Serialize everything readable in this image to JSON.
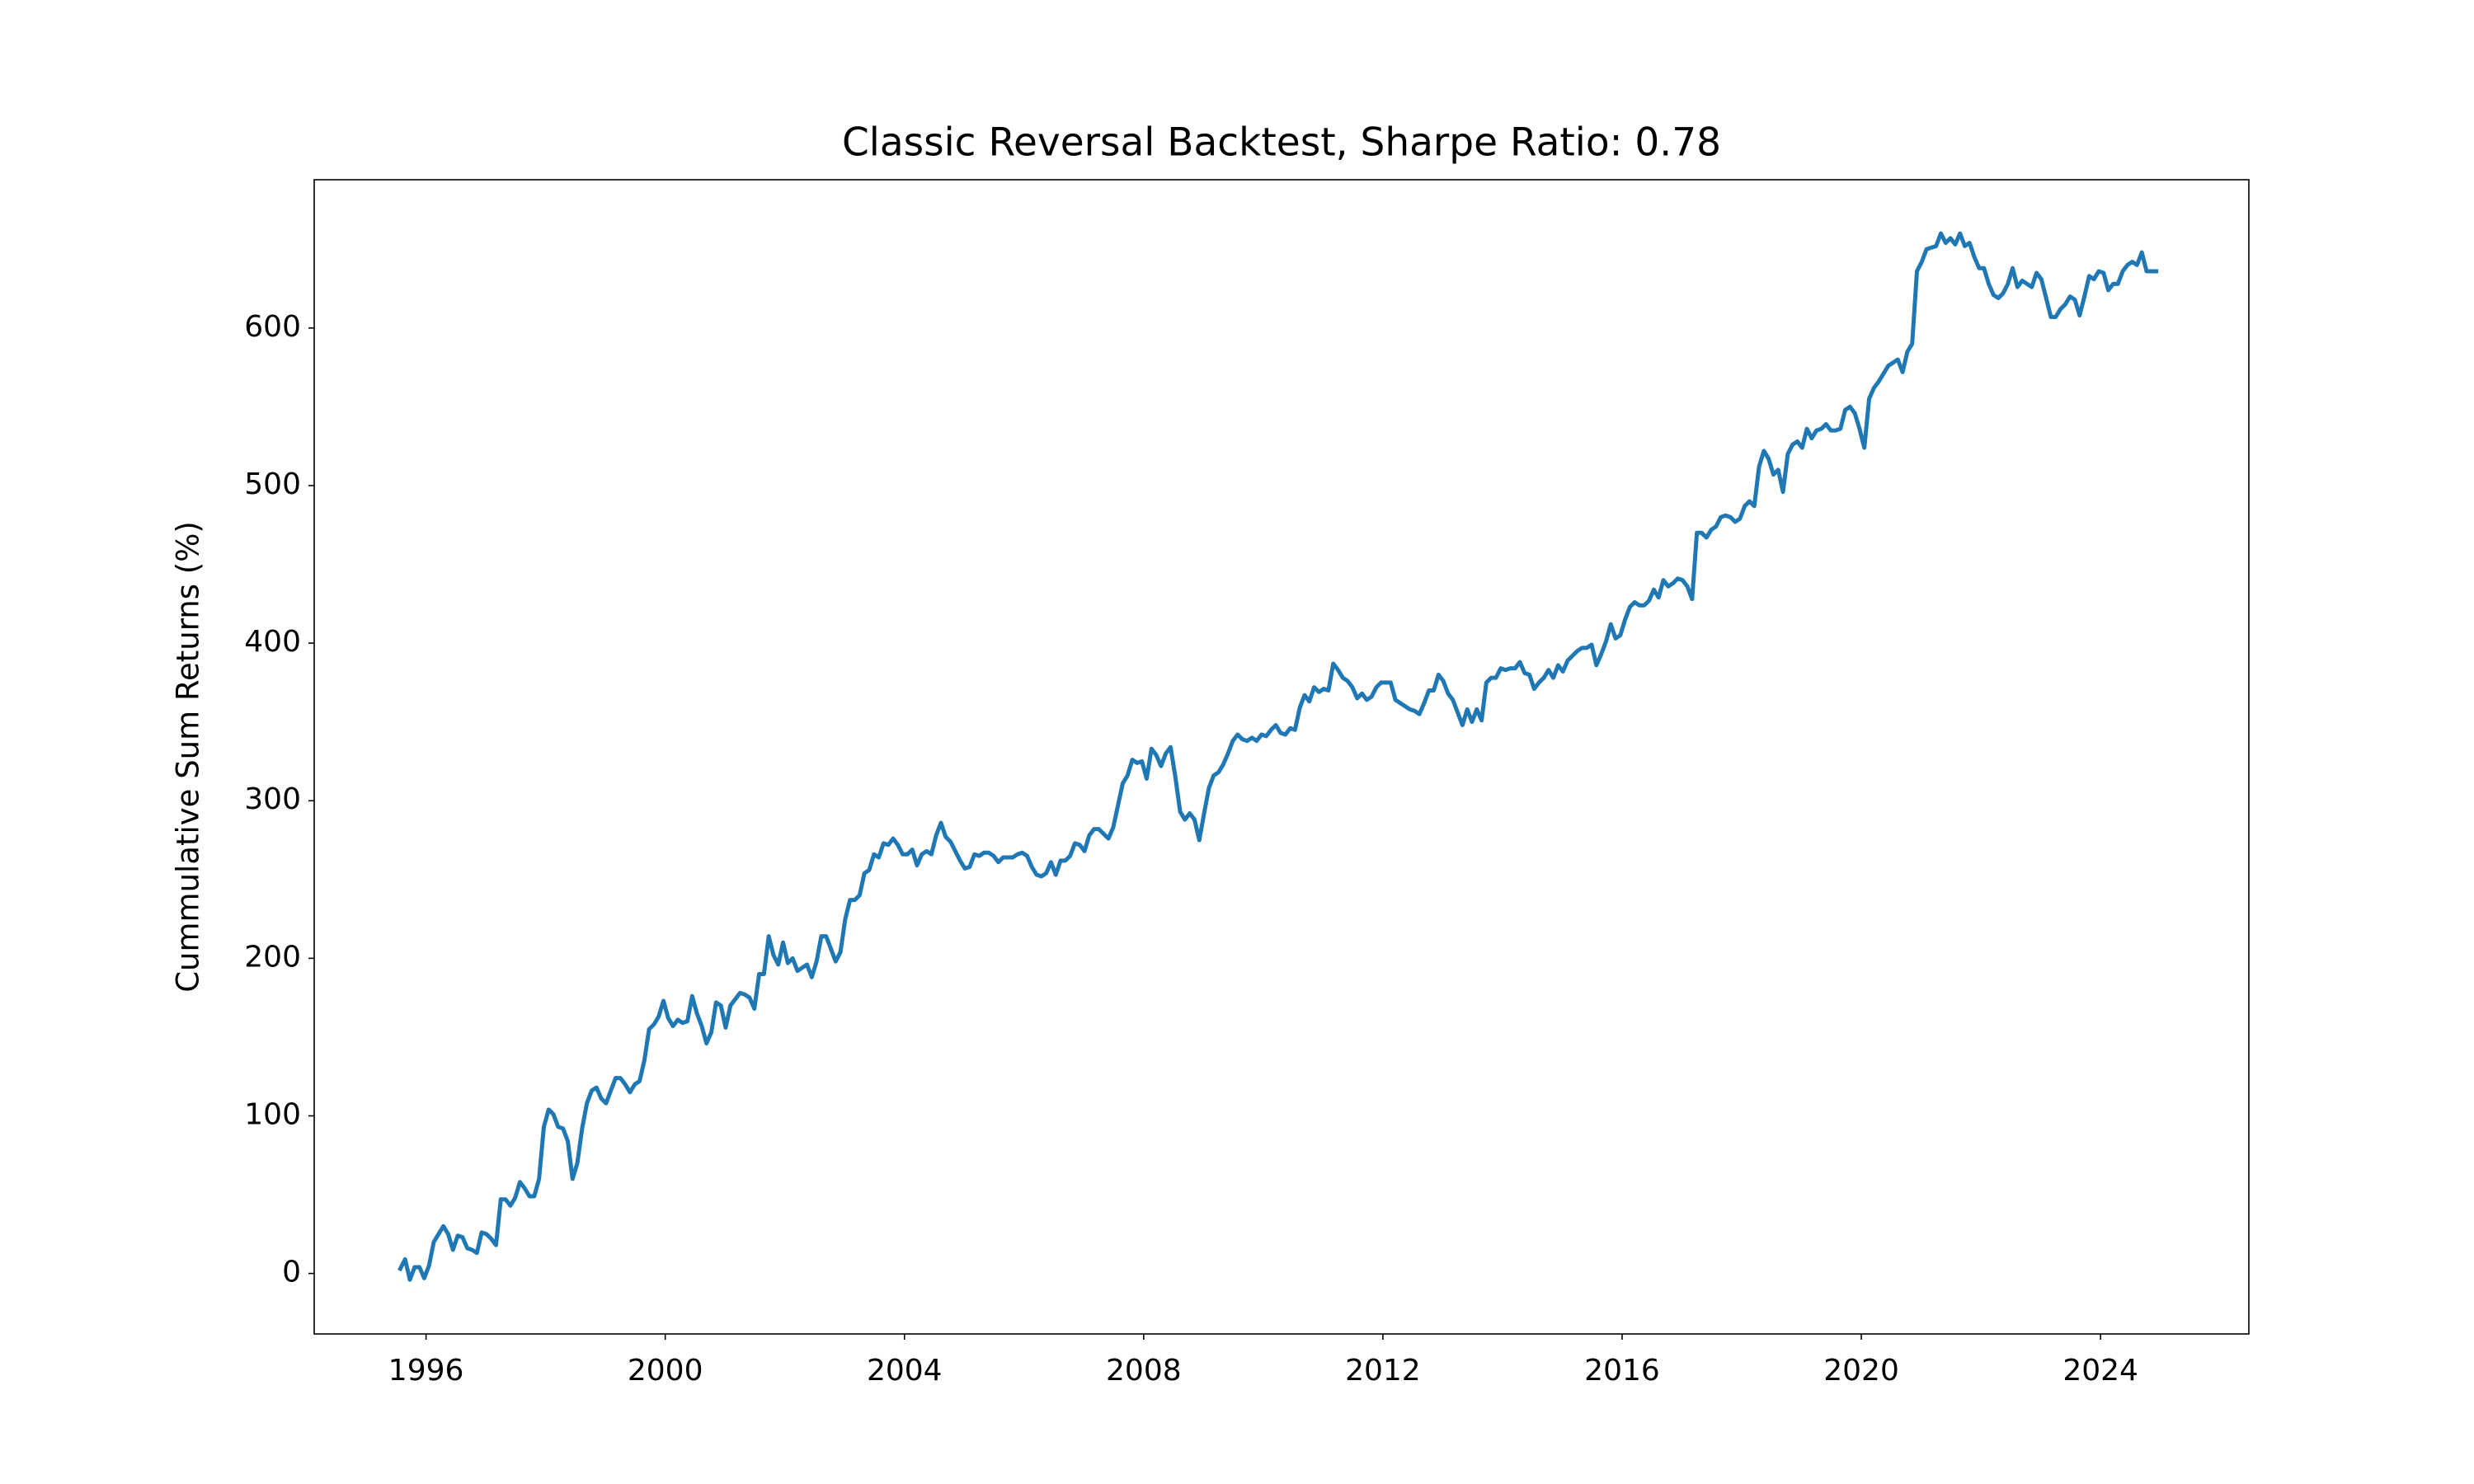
{
  "chart_data": {
    "type": "line",
    "title": "Classic Reversal Backtest, Sharpe Ratio: 0.78",
    "ylabel": "Cummulative Sum Returns (%)",
    "color": "#1f77b4",
    "xlim": [
      1994.13,
      2026.48
    ],
    "ylim": [
      -38.4,
      694.1
    ],
    "xticks": [
      1996,
      2000,
      2004,
      2008,
      2012,
      2016,
      2020,
      2024
    ],
    "yticks": [
      0,
      100,
      200,
      300,
      400,
      500,
      600
    ],
    "x": [
      1995.57,
      1995.65,
      1995.73,
      1995.81,
      1995.89,
      1995.97,
      1996.05,
      1996.13,
      1996.21,
      1996.29,
      1996.37,
      1996.45,
      1996.53,
      1996.61,
      1996.69,
      1996.77,
      1996.85,
      1996.93,
      1997.01,
      1997.09,
      1997.17,
      1997.25,
      1997.33,
      1997.41,
      1997.49,
      1997.57,
      1997.65,
      1997.73,
      1997.81,
      1997.89,
      1997.97,
      1998.05,
      1998.13,
      1998.21,
      1998.29,
      1998.37,
      1998.45,
      1998.53,
      1998.61,
      1998.69,
      1998.77,
      1998.85,
      1998.93,
      1999.01,
      1999.09,
      1999.17,
      1999.25,
      1999.33,
      1999.41,
      1999.49,
      1999.57,
      1999.65,
      1999.73,
      1999.81,
      1999.89,
      1999.97,
      2000.05,
      2000.13,
      2000.21,
      2000.29,
      2000.37,
      2000.45,
      2000.53,
      2000.61,
      2000.69,
      2000.77,
      2000.85,
      2000.93,
      2001.01,
      2001.09,
      2001.17,
      2001.25,
      2001.33,
      2001.41,
      2001.49,
      2001.57,
      2001.65,
      2001.73,
      2001.81,
      2001.89,
      2001.97,
      2002.05,
      2002.13,
      2002.21,
      2002.29,
      2002.37,
      2002.45,
      2002.53,
      2002.61,
      2002.69,
      2002.77,
      2002.85,
      2002.93,
      2003.01,
      2003.09,
      2003.17,
      2003.25,
      2003.33,
      2003.41,
      2003.49,
      2003.57,
      2003.65,
      2003.73,
      2003.81,
      2003.89,
      2003.97,
      2004.05,
      2004.13,
      2004.21,
      2004.29,
      2004.37,
      2004.45,
      2004.53,
      2004.61,
      2004.69,
      2004.77,
      2004.85,
      2004.93,
      2005.01,
      2005.09,
      2005.17,
      2005.25,
      2005.33,
      2005.41,
      2005.49,
      2005.57,
      2005.65,
      2005.73,
      2005.81,
      2005.89,
      2005.97,
      2006.05,
      2006.13,
      2006.21,
      2006.29,
      2006.37,
      2006.45,
      2006.53,
      2006.61,
      2006.69,
      2006.77,
      2006.85,
      2006.93,
      2007.01,
      2007.09,
      2007.17,
      2007.25,
      2007.33,
      2007.41,
      2007.49,
      2007.57,
      2007.65,
      2007.73,
      2007.81,
      2007.89,
      2007.97,
      2008.05,
      2008.13,
      2008.21,
      2008.29,
      2008.37,
      2008.45,
      2008.53,
      2008.61,
      2008.69,
      2008.77,
      2008.85,
      2008.93,
      2009.01,
      2009.09,
      2009.17,
      2009.25,
      2009.33,
      2009.41,
      2009.49,
      2009.57,
      2009.65,
      2009.73,
      2009.81,
      2009.89,
      2009.97,
      2010.05,
      2010.13,
      2010.21,
      2010.29,
      2010.37,
      2010.45,
      2010.53,
      2010.61,
      2010.69,
      2010.77,
      2010.85,
      2010.93,
      2011.01,
      2011.09,
      2011.17,
      2011.25,
      2011.33,
      2011.41,
      2011.49,
      2011.57,
      2011.65,
      2011.73,
      2011.81,
      2011.89,
      2011.97,
      2012.05,
      2012.13,
      2012.21,
      2012.29,
      2012.37,
      2012.45,
      2012.53,
      2012.61,
      2012.69,
      2012.77,
      2012.85,
      2012.93,
      2013.01,
      2013.09,
      2013.17,
      2013.25,
      2013.33,
      2013.41,
      2013.49,
      2013.57,
      2013.65,
      2013.73,
      2013.81,
      2013.89,
      2013.97,
      2014.05,
      2014.13,
      2014.21,
      2014.29,
      2014.37,
      2014.45,
      2014.53,
      2014.61,
      2014.69,
      2014.77,
      2014.85,
      2014.93,
      2015.01,
      2015.09,
      2015.17,
      2015.25,
      2015.33,
      2015.41,
      2015.49,
      2015.57,
      2015.65,
      2015.73,
      2015.81,
      2015.89,
      2015.97,
      2016.05,
      2016.13,
      2016.21,
      2016.29,
      2016.37,
      2016.45,
      2016.53,
      2016.61,
      2016.69,
      2016.77,
      2016.85,
      2016.93,
      2017.01,
      2017.09,
      2017.17,
      2017.25,
      2017.33,
      2017.41,
      2017.49,
      2017.57,
      2017.65,
      2017.73,
      2017.81,
      2017.89,
      2017.97,
      2018.05,
      2018.13,
      2018.21,
      2018.29,
      2018.37,
      2018.45,
      2018.53,
      2018.61,
      2018.69,
      2018.77,
      2018.85,
      2018.93,
      2019.01,
      2019.09,
      2019.17,
      2019.25,
      2019.33,
      2019.41,
      2019.49,
      2019.57,
      2019.65,
      2019.73,
      2019.81,
      2019.89,
      2019.97,
      2020.05,
      2020.13,
      2020.21,
      2020.29,
      2020.37,
      2020.45,
      2020.53,
      2020.61,
      2020.69,
      2020.77,
      2020.85,
      2020.93,
      2021.01,
      2021.09,
      2021.17,
      2021.25,
      2021.33,
      2021.41,
      2021.49,
      2021.57,
      2021.65,
      2021.73,
      2021.81,
      2021.89,
      2021.97,
      2022.05,
      2022.13,
      2022.21,
      2022.29,
      2022.37,
      2022.45,
      2022.53,
      2022.61,
      2022.69,
      2022.77,
      2022.85,
      2022.93,
      2023.01,
      2023.09,
      2023.17,
      2023.25,
      2023.33,
      2023.41,
      2023.49,
      2023.57,
      2023.65,
      2023.73,
      2023.81,
      2023.89,
      2023.97,
      2024.05,
      2024.13,
      2024.21,
      2024.29,
      2024.37,
      2024.45,
      2024.53,
      2024.61,
      2024.69,
      2024.77,
      2024.85,
      2024.93
    ],
    "values": [
      3,
      9,
      -4,
      4,
      4,
      -3,
      5,
      20,
      25,
      30,
      25,
      15,
      24,
      23,
      16,
      15,
      13,
      26,
      25,
      22,
      18,
      47,
      47,
      43,
      48,
      58,
      54,
      49,
      49,
      60,
      93,
      104,
      101,
      93,
      92,
      84,
      60,
      70,
      92,
      108,
      116,
      118,
      111,
      108,
      116,
      124,
      124,
      120,
      115,
      120,
      122,
      135,
      155,
      158,
      163,
      173,
      162,
      157,
      161,
      159,
      160,
      176,
      165,
      157,
      146,
      153,
      172,
      170,
      156,
      170,
      174,
      178,
      177,
      175,
      168,
      190,
      190,
      214,
      202,
      196,
      210,
      197,
      200,
      192,
      194,
      196,
      188,
      198,
      214,
      214,
      206,
      198,
      204,
      225,
      237,
      237,
      240,
      254,
      256,
      266,
      264,
      273,
      272,
      276,
      272,
      266,
      266,
      269,
      259,
      266,
      268,
      266,
      278,
      286,
      277,
      274,
      268,
      262,
      257,
      258,
      266,
      265,
      267,
      267,
      265,
      261,
      264,
      264,
      264,
      266,
      267,
      265,
      258,
      253,
      252,
      254,
      261,
      253,
      262,
      262,
      265,
      273,
      272,
      268,
      278,
      282,
      282,
      279,
      276,
      283,
      297,
      311,
      316,
      326,
      324,
      325,
      314,
      333,
      329,
      322,
      330,
      334,
      315,
      293,
      288,
      292,
      288,
      275,
      292,
      308,
      316,
      318,
      323,
      330,
      338,
      342,
      339,
      338,
      340,
      338,
      342,
      341,
      345,
      348,
      343,
      342,
      346,
      345,
      359,
      367,
      363,
      372,
      369,
      371,
      370,
      387,
      383,
      378,
      376,
      372,
      365,
      368,
      364,
      366,
      372,
      375,
      375,
      375,
      364,
      362,
      360,
      358,
      357,
      355,
      362,
      370,
      370,
      380,
      376,
      368,
      364,
      356,
      348,
      358,
      350,
      358,
      351,
      375,
      378,
      378,
      384,
      383,
      384,
      384,
      388,
      381,
      380,
      371,
      375,
      378,
      383,
      378,
      386,
      382,
      389,
      392,
      395,
      397,
      397,
      399,
      386,
      393,
      401,
      412,
      403,
      405,
      415,
      423,
      426,
      424,
      424,
      427,
      434,
      429,
      440,
      436,
      438,
      441,
      440,
      436,
      428,
      470,
      470,
      467,
      472,
      474,
      480,
      481,
      480,
      477,
      479,
      487,
      490,
      487,
      512,
      522,
      517,
      507,
      510,
      496,
      520,
      526,
      528,
      524,
      536,
      530,
      535,
      536,
      539,
      535,
      535,
      536,
      548,
      550,
      546,
      536,
      524,
      555,
      562,
      566,
      571,
      576,
      578,
      580,
      572,
      585,
      590,
      636,
      642,
      650,
      651,
      652,
      660,
      654,
      657,
      653,
      660,
      652,
      654,
      645,
      638,
      638,
      628,
      621,
      619,
      622,
      628,
      638,
      626,
      630,
      628,
      626,
      635,
      631,
      619,
      607,
      607,
      612,
      615,
      620,
      618,
      608,
      620,
      633,
      631,
      636,
      635,
      624,
      628,
      628,
      636,
      640,
      642,
      640,
      648,
      636,
      636,
      636
    ]
  }
}
